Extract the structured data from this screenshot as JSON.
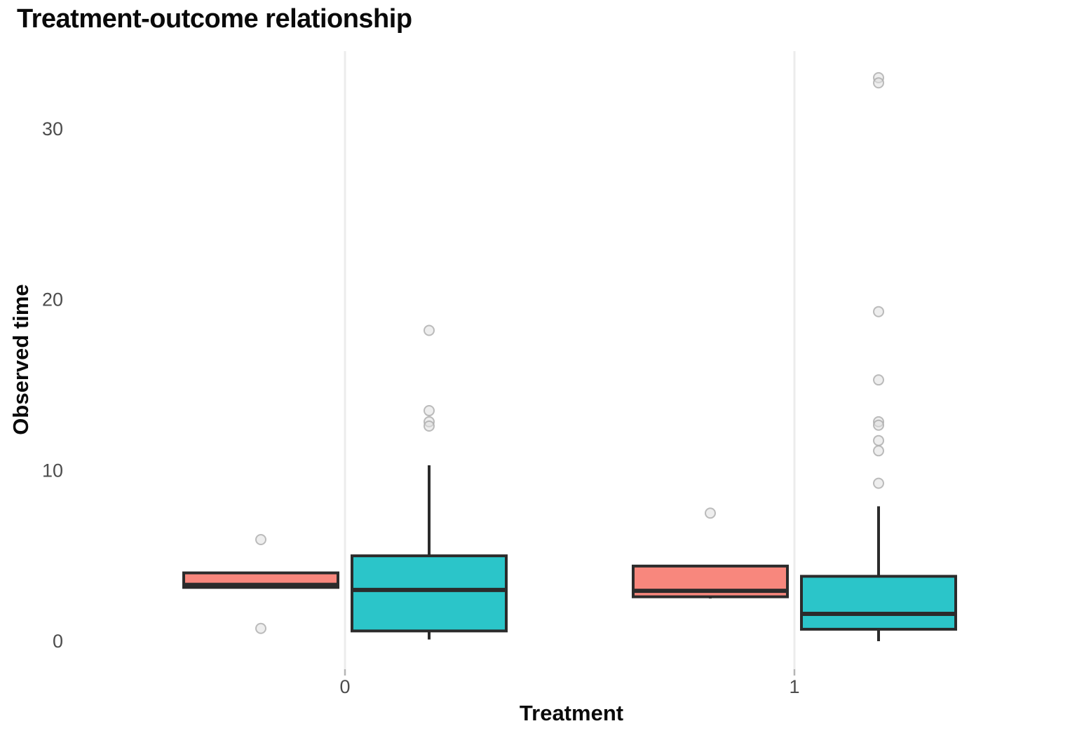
{
  "chart_data": {
    "type": "boxplot",
    "title": "Treatment-outcome relationship",
    "xlabel": "Treatment",
    "ylabel": "Observed time",
    "categories": [
      "0",
      "1"
    ],
    "y_ticks": [
      0,
      10,
      20,
      30
    ],
    "ylim": [
      -1.6,
      34.5
    ],
    "grid": "vertical-major-only",
    "legend": "none",
    "colors": {
      "salmon_fill": "#F8877D",
      "teal_fill": "#2BC5C9",
      "box_border": "#2B2B2B",
      "outlier_fill": "#E0E0E0",
      "outlier_stroke": "#ABABAB",
      "gridline": "#ECECEC",
      "tick_mark": "#B5B5B5",
      "tick_label": "#4D4D4D"
    },
    "series": [
      {
        "name": "salmon-group",
        "fill_key": "salmon_fill",
        "boxes": [
          {
            "category": "0",
            "whisker_low": 3.15,
            "q1": 3.15,
            "median": 3.3,
            "q3": 4.0,
            "whisker_high": 4.0,
            "outliers": [
              5.95,
              0.75
            ]
          },
          {
            "category": "1",
            "whisker_low": 2.5,
            "q1": 2.6,
            "median": 2.95,
            "q3": 4.4,
            "whisker_high": 4.4,
            "outliers": [
              7.5
            ]
          }
        ]
      },
      {
        "name": "teal-group",
        "fill_key": "teal_fill",
        "boxes": [
          {
            "category": "0",
            "whisker_low": 0.1,
            "q1": 0.6,
            "median": 3.0,
            "q3": 5.0,
            "whisker_high": 10.3,
            "outliers": [
              18.2,
              13.5,
              12.85,
              12.6
            ]
          },
          {
            "category": "1",
            "whisker_low": 0.0,
            "q1": 0.7,
            "median": 1.6,
            "q3": 3.8,
            "whisker_high": 7.9,
            "outliers": [
              33.0,
              32.7,
              19.3,
              15.3,
              12.85,
              12.65,
              11.75,
              11.15,
              9.25
            ]
          }
        ]
      }
    ]
  }
}
